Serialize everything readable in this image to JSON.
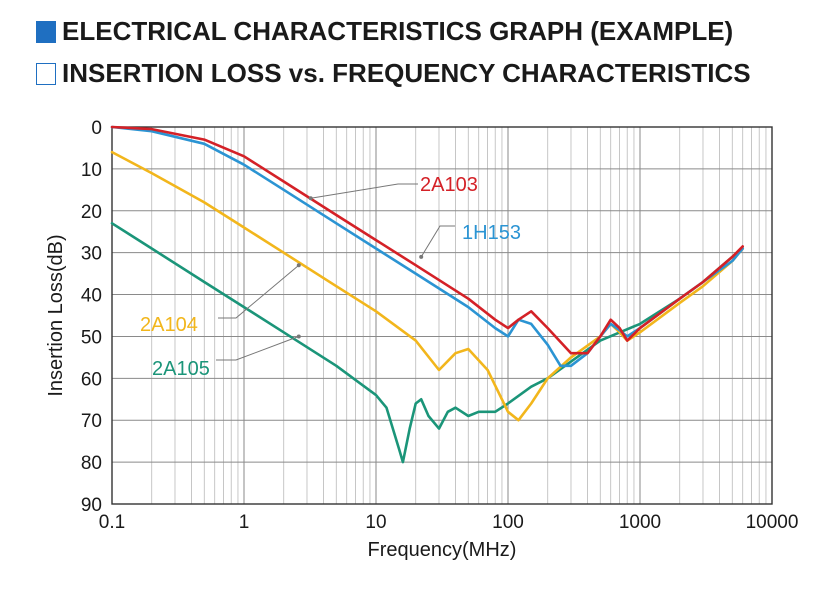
{
  "header": {
    "title": "ELECTRICAL CHARACTERISTICS GRAPH (EXAMPLE)",
    "subtitle": "INSERTION LOSS vs. FREQUENCY CHARACTERISTICS",
    "title_icon": "filled-square-icon",
    "subtitle_icon": "open-square-icon",
    "icon_color": "#1f6fc1"
  },
  "chart_data": {
    "type": "line",
    "title": "INSERTION LOSS vs. FREQUENCY CHARACTERISTICS",
    "xlabel": "Frequency(MHz)",
    "ylabel": "Insertion Loss(dB)",
    "xscale": "log",
    "xlim": [
      0.1,
      10000
    ],
    "ylim": [
      0,
      90
    ],
    "yaxis_inverted": true,
    "grid": true,
    "x_tick_labels": [
      "0.1",
      "1",
      "10",
      "100",
      "1000",
      "10000"
    ],
    "y_tick_labels": [
      "0",
      "10",
      "20",
      "30",
      "40",
      "50",
      "60",
      "70",
      "80",
      "90"
    ],
    "series": [
      {
        "name": "2A103",
        "color": "#d42127",
        "x": [
          0.1,
          0.2,
          0.5,
          1,
          2,
          5,
          10,
          20,
          50,
          80,
          100,
          120,
          150,
          200,
          300,
          400,
          500,
          600,
          700,
          800,
          1000,
          2000,
          3000,
          5000,
          6000
        ],
        "y": [
          0,
          0.5,
          3,
          7,
          13,
          21,
          27,
          33,
          41,
          46,
          48,
          46,
          44,
          48,
          54,
          54,
          50,
          46,
          48,
          51,
          48,
          41,
          37,
          31,
          28.5
        ]
      },
      {
        "name": "1H153",
        "color": "#2b94d3",
        "x": [
          0.1,
          0.2,
          0.5,
          1,
          2,
          5,
          10,
          20,
          50,
          80,
          100,
          120,
          150,
          200,
          250,
          300,
          400,
          500,
          600,
          700,
          800,
          1000,
          2000,
          3000,
          5000,
          6000
        ],
        "y": [
          0,
          1,
          4,
          9,
          15,
          23,
          29,
          35,
          43,
          48,
          50,
          46,
          47,
          52,
          57,
          57,
          54,
          50,
          47,
          48.5,
          50,
          48,
          41,
          37,
          32,
          29
        ]
      },
      {
        "name": "2A104",
        "color": "#f2b61c",
        "x": [
          0.1,
          0.2,
          0.5,
          1,
          2,
          5,
          10,
          20,
          30,
          40,
          50,
          70,
          100,
          120,
          150,
          200,
          300,
          500,
          600,
          700,
          800,
          1000,
          2000,
          3000,
          5000,
          6000
        ],
        "y": [
          6,
          11,
          18,
          24,
          30,
          38,
          44,
          51,
          58,
          54,
          53,
          58,
          68,
          70,
          66,
          60,
          55,
          50,
          47,
          49,
          51,
          49,
          42,
          38,
          32,
          29
        ]
      },
      {
        "name": "2A105",
        "color": "#1b9579",
        "x": [
          0.1,
          0.2,
          0.5,
          1,
          2,
          5,
          10,
          12,
          15,
          16,
          18,
          20,
          22,
          25,
          30,
          35,
          40,
          50,
          60,
          80,
          100,
          150,
          200,
          300,
          500,
          1000,
          2000,
          3000,
          5000,
          6000
        ],
        "y": [
          23,
          29,
          37,
          43,
          49,
          57,
          64,
          67,
          77,
          80,
          72,
          66,
          65,
          69,
          72,
          68,
          67,
          69,
          68,
          68,
          66,
          62,
          60,
          56,
          51,
          47,
          41,
          37,
          31,
          29
        ]
      }
    ],
    "annotations": [
      {
        "text": "2A103",
        "series": "2A103"
      },
      {
        "text": "1H153",
        "series": "1H153"
      },
      {
        "text": "2A104",
        "series": "2A104"
      },
      {
        "text": "2A105",
        "series": "2A105"
      }
    ]
  }
}
